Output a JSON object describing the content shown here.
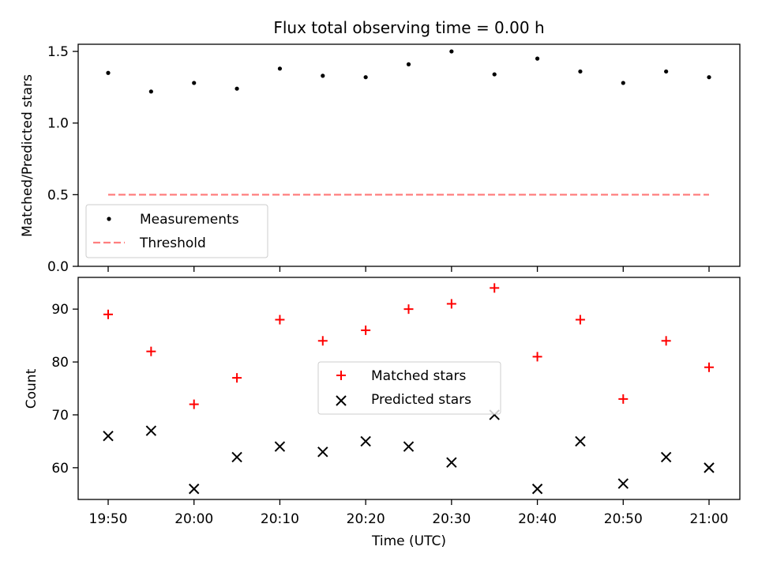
{
  "chart_data": [
    {
      "type": "scatter",
      "title": "Flux total observing time = 0.00 h",
      "ylabel": "Matched/Predicted stars",
      "xlabel": "",
      "ylim": [
        0,
        1.55
      ],
      "yticks": [
        "0.0",
        "0.5",
        "1.0",
        "1.5"
      ],
      "ytick_values": [
        0,
        0.5,
        1.0,
        1.5
      ],
      "x": [
        "19:50",
        "19:55",
        "20:00",
        "20:05",
        "20:10",
        "20:15",
        "20:20",
        "20:25",
        "20:30",
        "20:35",
        "20:40",
        "20:45",
        "20:50",
        "20:55",
        "21:00"
      ],
      "series": [
        {
          "name": "Measurements",
          "marker": "dot",
          "color": "#000000",
          "values": [
            1.35,
            1.22,
            1.28,
            1.24,
            1.38,
            1.33,
            1.32,
            1.41,
            1.5,
            1.34,
            1.45,
            1.36,
            1.28,
            1.36,
            1.32
          ]
        },
        {
          "name": "Threshold",
          "marker": "dashed-line",
          "color": "#ff7f7f",
          "values": [
            0.5,
            0.5
          ]
        }
      ],
      "legend": "lower-left",
      "grid": false
    },
    {
      "type": "scatter",
      "title": "",
      "ylabel": "Count",
      "xlabel": "Time (UTC)",
      "ylim": [
        54,
        96
      ],
      "yticks": [
        "60",
        "70",
        "80",
        "90"
      ],
      "ytick_values": [
        60,
        70,
        80,
        90
      ],
      "xticks": [
        "19:50",
        "20:00",
        "20:10",
        "20:20",
        "20:30",
        "20:40",
        "20:50",
        "21:00"
      ],
      "x": [
        "19:50",
        "19:55",
        "20:00",
        "20:05",
        "20:10",
        "20:15",
        "20:20",
        "20:25",
        "20:30",
        "20:35",
        "20:40",
        "20:45",
        "20:50",
        "20:55",
        "21:00"
      ],
      "series": [
        {
          "name": "Matched stars",
          "marker": "plus",
          "color": "#ff0000",
          "values": [
            89,
            82,
            72,
            77,
            88,
            84,
            86,
            90,
            91,
            94,
            81,
            88,
            73,
            84,
            79
          ]
        },
        {
          "name": "Predicted stars",
          "marker": "x",
          "color": "#000000",
          "values": [
            66,
            67,
            56,
            62,
            64,
            63,
            65,
            64,
            61,
            70,
            56,
            65,
            57,
            62,
            60
          ]
        }
      ],
      "legend": "center",
      "grid": false
    }
  ]
}
